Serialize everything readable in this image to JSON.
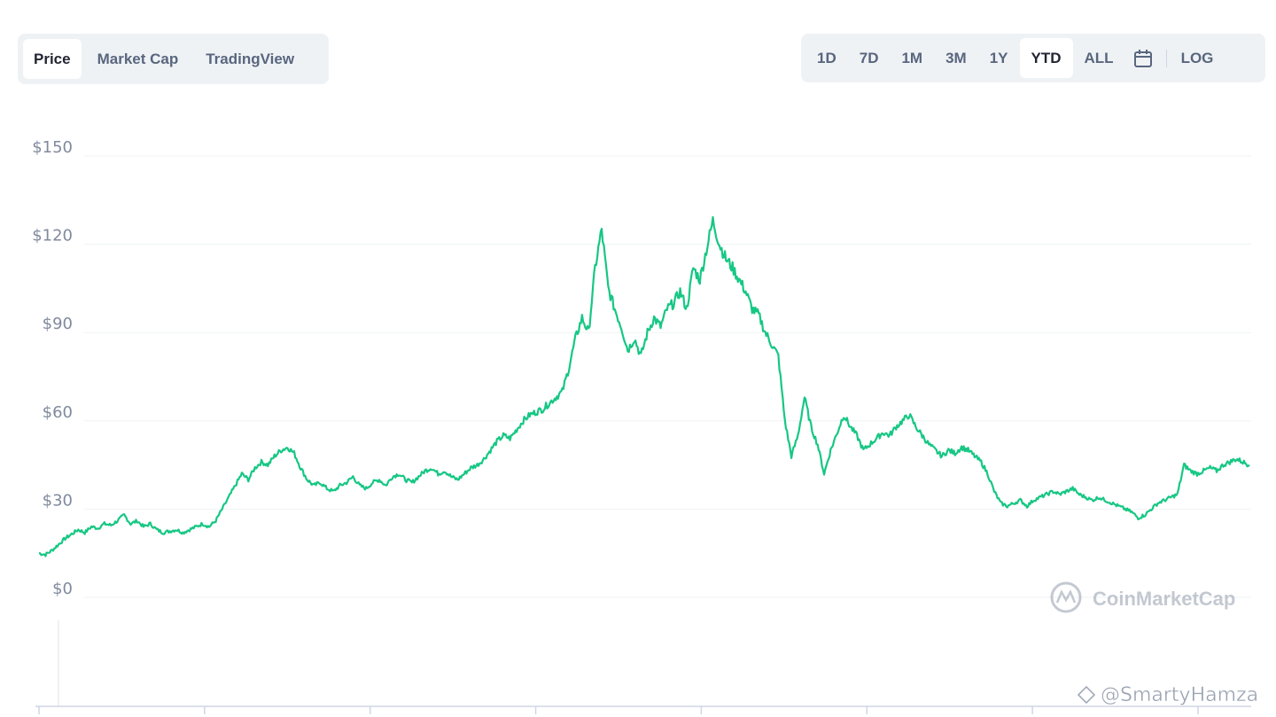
{
  "tabs_left": [
    {
      "label": "Price",
      "active": true
    },
    {
      "label": "Market Cap",
      "active": false
    },
    {
      "label": "TradingView",
      "active": false
    }
  ],
  "ranges": [
    {
      "label": "1D",
      "active": false
    },
    {
      "label": "7D",
      "active": false
    },
    {
      "label": "1M",
      "active": false
    },
    {
      "label": "3M",
      "active": false
    },
    {
      "label": "1Y",
      "active": false
    },
    {
      "label": "YTD",
      "active": true
    },
    {
      "label": "ALL",
      "active": false
    }
  ],
  "log_label": "LOG",
  "watermark": "CoinMarketCap",
  "credit": "@SmartyHamza",
  "colors": {
    "line": "#16c784",
    "grid": "#eff2f5",
    "axis_text": "#808a9d"
  },
  "chart_data": {
    "type": "line",
    "ylim": [
      0,
      150
    ],
    "ytick_labels": [
      "$0",
      "$30",
      "$60",
      "$90",
      "$120",
      "$150"
    ],
    "yticks": [
      0,
      30,
      60,
      90,
      120,
      150
    ],
    "x_tick_count": 8,
    "series": [
      {
        "values": [
          15,
          14.5,
          16,
          18,
          20,
          21.5,
          23,
          22,
          24,
          23.5,
          25,
          24.5,
          26,
          28,
          25,
          26,
          24,
          25,
          23,
          22,
          22.5,
          23,
          22,
          23,
          24,
          25,
          24,
          26,
          30,
          34,
          38,
          42,
          40,
          44,
          46,
          45,
          48,
          50,
          51,
          49,
          44,
          40,
          38,
          39,
          37,
          36,
          38,
          39,
          41,
          38,
          37,
          39,
          40,
          38,
          41,
          42,
          40,
          39,
          41,
          43,
          44,
          42,
          43,
          41,
          40,
          42,
          44,
          45,
          47,
          50,
          53,
          55,
          54,
          57,
          60,
          62,
          63,
          64,
          66,
          68,
          70,
          78,
          88,
          95,
          90,
          112,
          125,
          105,
          98,
          92,
          84,
          88,
          82,
          90,
          95,
          92,
          98,
          100,
          104,
          98,
          112,
          108,
          118,
          128,
          120,
          115,
          112,
          108,
          104,
          98,
          96,
          90,
          86,
          82,
          60,
          48,
          55,
          68,
          58,
          52,
          42,
          50,
          56,
          62,
          58,
          55,
          50,
          52,
          54,
          56,
          55,
          58,
          60,
          62,
          58,
          55,
          52,
          50,
          48,
          50,
          49,
          51,
          50,
          48,
          46,
          42,
          36,
          32,
          31,
          32,
          33,
          31,
          33,
          34,
          35,
          36,
          35,
          36,
          37,
          35,
          34,
          33,
          34,
          33,
          32,
          31,
          30,
          29,
          27,
          28,
          30,
          32,
          33,
          34,
          35,
          45,
          43,
          42,
          43,
          44,
          43,
          45,
          46,
          47,
          46,
          45
        ]
      }
    ]
  }
}
